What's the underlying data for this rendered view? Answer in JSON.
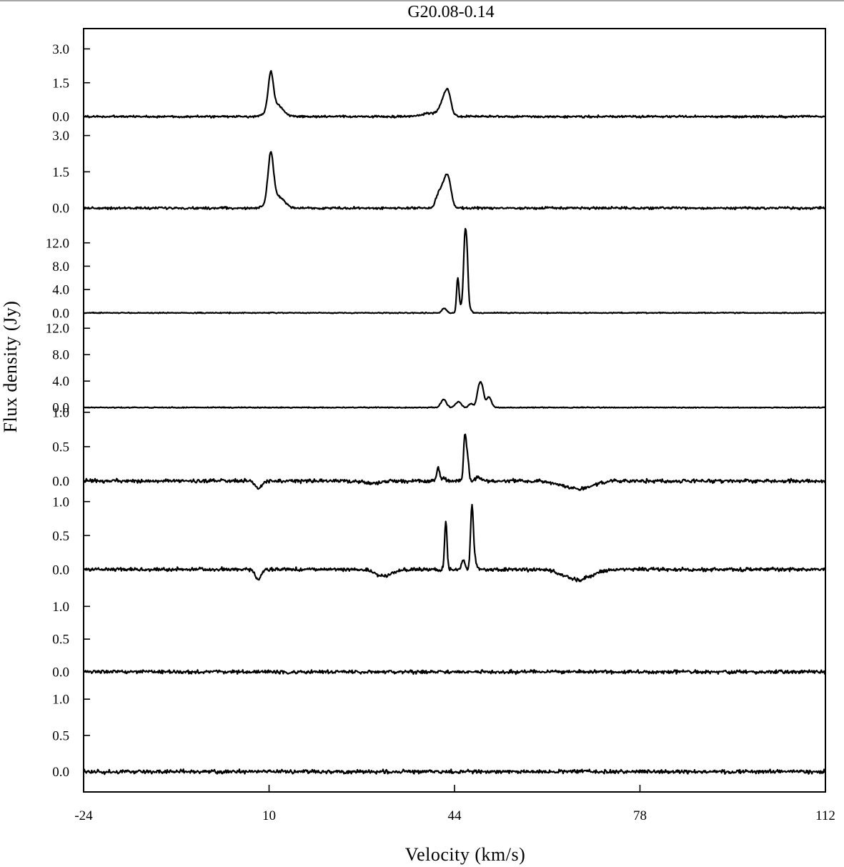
{
  "chart_data": {
    "type": "line",
    "title": "G20.08-0.14",
    "xlabel": "Velocity (km/s)",
    "ylabel": "Flux density (Jy)",
    "xlim": [
      -24,
      112
    ],
    "x_ticks": [
      "-24",
      "10",
      "44",
      "78",
      "112"
    ],
    "grid": false,
    "panels": [
      {
        "ylim": [
          -0.25,
          3.9
        ],
        "y_ticks": [
          "0.0",
          "1.5",
          "3.0"
        ],
        "noise": 0.035,
        "baseline": [],
        "peaks": [
          {
            "x": 10.3,
            "y": 1.55,
            "w": 0.45
          },
          {
            "x": 10.8,
            "y": 0.45,
            "w": 1.2
          },
          {
            "x": 12.0,
            "y": 0.18,
            "w": 1.0
          },
          {
            "x": 40.0,
            "y": 0.15,
            "w": 2.0
          },
          {
            "x": 42.2,
            "y": 0.75,
            "w": 0.75
          },
          {
            "x": 42.9,
            "y": 0.6,
            "w": 0.5
          }
        ]
      },
      {
        "ylim": [
          -0.35,
          3.55
        ],
        "y_ticks": [
          "0.0",
          "1.5",
          "3.0"
        ],
        "noise": 0.035,
        "baseline": [],
        "peaks": [
          {
            "x": 10.3,
            "y": 2.0,
            "w": 0.5
          },
          {
            "x": 11.0,
            "y": 0.35,
            "w": 1.2
          },
          {
            "x": 12.2,
            "y": 0.2,
            "w": 1.0
          },
          {
            "x": 41.0,
            "y": 0.45,
            "w": 0.5
          },
          {
            "x": 42.3,
            "y": 1.1,
            "w": 0.7
          },
          {
            "x": 43.0,
            "y": 0.55,
            "w": 0.5
          }
        ]
      },
      {
        "ylim": [
          -1.5,
          16.5
        ],
        "y_ticks": [
          "0.0",
          "4.0",
          "8.0",
          "12.0"
        ],
        "noise": 0.06,
        "baseline": [],
        "peaks": [
          {
            "x": 42.1,
            "y": 0.8,
            "w": 0.4
          },
          {
            "x": 44.6,
            "y": 6.0,
            "w": 0.22
          },
          {
            "x": 45.3,
            "y": 1.2,
            "w": 0.3
          },
          {
            "x": 45.9,
            "y": 12.2,
            "w": 0.25
          },
          {
            "x": 46.3,
            "y": 8.0,
            "w": 0.22
          },
          {
            "x": 46.8,
            "y": 0.7,
            "w": 0.3
          }
        ]
      },
      {
        "ylim": [
          -0.2,
          13.0
        ],
        "y_ticks": [
          "0.0",
          "4.0",
          "8.0",
          "12.0"
        ],
        "noise": 0.05,
        "baseline": [],
        "peaks": [
          {
            "x": 42.0,
            "y": 1.2,
            "w": 0.5
          },
          {
            "x": 44.7,
            "y": 0.9,
            "w": 0.5
          },
          {
            "x": 47.0,
            "y": 0.6,
            "w": 0.4
          },
          {
            "x": 48.5,
            "y": 3.0,
            "w": 0.4
          },
          {
            "x": 49.1,
            "y": 2.3,
            "w": 0.35
          },
          {
            "x": 50.3,
            "y": 1.6,
            "w": 0.45
          }
        ]
      },
      {
        "ylim": [
          -0.25,
          1.05
        ],
        "y_ticks": [
          "0.0",
          "0.5",
          "1.0"
        ],
        "noise": 0.02,
        "baseline": [
          {
            "x": 8.0,
            "y": -0.1,
            "w": 0.6
          },
          {
            "x": 29.0,
            "y": -0.04,
            "w": 1.5
          },
          {
            "x": 66.5,
            "y": -0.12,
            "w": 2.5
          }
        ],
        "peaks": [
          {
            "x": 41.0,
            "y": 0.2,
            "w": 0.25
          },
          {
            "x": 42.0,
            "y": 0.05,
            "w": 0.3
          },
          {
            "x": 45.9,
            "y": 0.64,
            "w": 0.25
          },
          {
            "x": 46.4,
            "y": 0.3,
            "w": 0.25
          },
          {
            "x": 48.5,
            "y": 0.05,
            "w": 0.6
          }
        ]
      },
      {
        "ylim": [
          -0.35,
          1.05
        ],
        "y_ticks": [
          "0.0",
          "0.5",
          "1.0"
        ],
        "noise": 0.02,
        "baseline": [
          {
            "x": 8.0,
            "y": -0.15,
            "w": 0.5
          },
          {
            "x": 31.0,
            "y": -0.1,
            "w": 1.5
          },
          {
            "x": 66.5,
            "y": -0.15,
            "w": 2.5
          }
        ],
        "peaks": [
          {
            "x": 42.4,
            "y": 0.72,
            "w": 0.22
          },
          {
            "x": 45.6,
            "y": 0.14,
            "w": 0.3
          },
          {
            "x": 47.2,
            "y": 0.95,
            "w": 0.25
          },
          {
            "x": 47.8,
            "y": 0.12,
            "w": 0.3
          }
        ]
      },
      {
        "ylim": [
          -0.25,
          1.2
        ],
        "y_ticks": [
          "0.0",
          "0.5",
          "1.0"
        ],
        "noise": 0.02,
        "baseline": [],
        "peaks": []
      },
      {
        "ylim": [
          -0.28,
          1.15
        ],
        "y_ticks": [
          "0.0",
          "0.5",
          "1.0"
        ],
        "noise": 0.02,
        "baseline": [],
        "peaks": []
      }
    ]
  }
}
